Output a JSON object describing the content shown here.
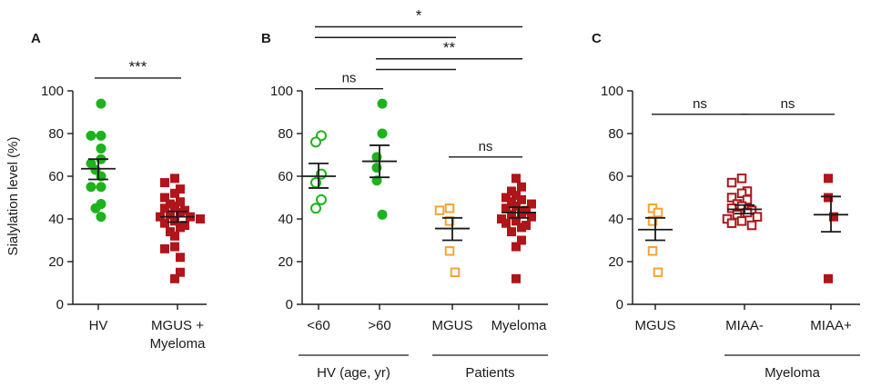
{
  "colors": {
    "green": "#1db31d",
    "red": "#b0151a",
    "orange": "#f5a33a",
    "axis": "#1a1a1a",
    "bar": "#1a1a1a"
  },
  "y_axis_label": "Sialylation level (%)",
  "chart_data": [
    {
      "panel": "A",
      "type": "scatter",
      "ylim": [
        0,
        100
      ],
      "yticks": [
        "0",
        "20",
        "40",
        "60",
        "80",
        "100"
      ],
      "categories": [
        {
          "label": [
            "HV"
          ],
          "color": "green",
          "marker": "circle",
          "filled": true,
          "mean": 63.5,
          "sem_low": 58.5,
          "sem_high": 68.0,
          "values": [
            94,
            79,
            79,
            73,
            68,
            66,
            63,
            60,
            55,
            55,
            47,
            45,
            41
          ]
        },
        {
          "label": [
            "MGUS +",
            "Myeloma"
          ],
          "color": "red",
          "marker": "square",
          "filled": true,
          "mean": 41,
          "sem_low": 38.5,
          "sem_high": 43.5,
          "values": [
            59,
            57,
            54,
            52,
            50,
            48,
            47,
            46,
            45,
            44,
            43,
            42,
            41,
            41,
            40,
            39,
            38,
            37,
            36,
            34,
            32,
            27,
            26,
            22,
            15,
            12
          ]
        }
      ],
      "significance": [
        {
          "label": "***",
          "from": 0,
          "to": 1,
          "y": 106
        }
      ],
      "groups": []
    },
    {
      "panel": "B",
      "type": "scatter",
      "ylim": [
        0,
        100
      ],
      "yticks": [
        "0",
        "20",
        "40",
        "60",
        "80",
        "100"
      ],
      "categories": [
        {
          "label": [
            "<60"
          ],
          "color": "green",
          "marker": "circle",
          "filled": false,
          "mean": 60,
          "sem_low": 54.5,
          "sem_high": 66.0,
          "values": [
            79,
            76,
            61,
            57,
            49,
            45
          ]
        },
        {
          "label": [
            ">60"
          ],
          "color": "green",
          "marker": "circle",
          "filled": true,
          "mean": 67,
          "sem_low": 59.5,
          "sem_high": 74.5,
          "values": [
            94,
            80,
            69,
            64,
            58,
            42
          ]
        },
        {
          "label": [
            "MGUS"
          ],
          "color": "orange",
          "marker": "square",
          "filled": false,
          "mean": 35.5,
          "sem_low": 30.0,
          "sem_high": 40.5,
          "values": [
            45,
            44,
            39,
            25,
            15
          ]
        },
        {
          "label": [
            "Myeloma"
          ],
          "color": "red",
          "marker": "square",
          "filled": true,
          "mean": 43,
          "sem_low": 40.5,
          "sem_high": 45.5,
          "values": [
            59,
            55,
            53,
            51,
            50,
            49,
            48,
            47,
            46,
            45,
            44,
            43,
            42,
            41,
            40,
            39,
            38,
            37,
            36,
            34,
            30,
            27,
            12
          ]
        }
      ],
      "significance": [
        {
          "label": "*",
          "from": 0,
          "to": 3,
          "y": 130
        },
        {
          "label": "",
          "from": 0,
          "to": 2,
          "y": 125
        },
        {
          "label": "**",
          "from": 1,
          "to": 3,
          "y": 115
        },
        {
          "label": "",
          "from": 1,
          "to": 2,
          "y": 110
        },
        {
          "label": "ns",
          "from": 0,
          "to": 1,
          "y": 101
        },
        {
          "label": "ns",
          "from": 2,
          "to": 3,
          "y": 69
        }
      ],
      "groups": [
        {
          "label": "HV (age, yr)",
          "from": 0,
          "to": 1
        },
        {
          "label": "Patients",
          "from": 2,
          "to": 3
        }
      ]
    },
    {
      "panel": "C",
      "type": "scatter",
      "ylim": [
        0,
        100
      ],
      "yticks": [
        "0",
        "20",
        "40",
        "60",
        "80",
        "100"
      ],
      "categories": [
        {
          "label": [
            "MGUS"
          ],
          "color": "orange",
          "marker": "square",
          "filled": false,
          "mean": 35,
          "sem_low": 30.0,
          "sem_high": 40.5,
          "values": [
            45,
            43,
            39,
            25,
            15
          ]
        },
        {
          "label": [
            "MIAA-"
          ],
          "color": "red",
          "marker": "square",
          "filled": false,
          "mean": 44.5,
          "sem_low": 42.5,
          "sem_high": 46.5,
          "values": [
            59,
            57,
            53,
            52,
            50,
            49,
            47,
            46,
            45,
            44,
            43,
            42,
            41,
            40,
            39,
            38,
            37
          ]
        },
        {
          "label": [
            "MIAA+"
          ],
          "color": "red",
          "marker": "square",
          "filled": true,
          "mean": 42,
          "sem_low": 34.0,
          "sem_high": 50.5,
          "values": [
            59,
            50,
            41,
            12
          ]
        }
      ],
      "significance": [
        {
          "label": "ns",
          "from": 0,
          "to": 1,
          "y": 89
        },
        {
          "label": "ns",
          "from": 1,
          "to": 2,
          "y": 89
        }
      ],
      "groups": [
        {
          "label": "Myeloma",
          "from": 1,
          "to": 2
        }
      ]
    }
  ]
}
